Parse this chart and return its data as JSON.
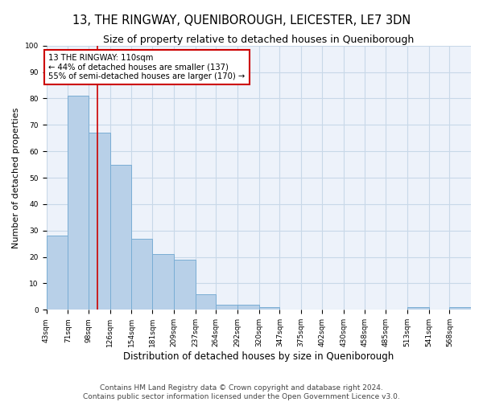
{
  "title": "13, THE RINGWAY, QUENIBOROUGH, LEICESTER, LE7 3DN",
  "subtitle": "Size of property relative to detached houses in Queniborough",
  "xlabel": "Distribution of detached houses by size in Queniborough",
  "ylabel": "Number of detached properties",
  "bar_values": [
    28,
    81,
    67,
    55,
    27,
    21,
    19,
    6,
    2,
    2,
    1,
    0,
    0,
    0,
    0,
    0,
    0,
    1,
    0,
    1
  ],
  "bin_edges": [
    43,
    71,
    98,
    126,
    154,
    181,
    209,
    237,
    264,
    292,
    320,
    347,
    375,
    402,
    430,
    458,
    485,
    513,
    541,
    568,
    596
  ],
  "bar_color": "#b8d0e8",
  "bar_edgecolor": "#7aadd4",
  "grid_color": "#c8d8e8",
  "background_color": "#edf2fa",
  "vline_x": 110,
  "vline_color": "#cc0000",
  "annotation_text": "13 THE RINGWAY: 110sqm\n← 44% of detached houses are smaller (137)\n55% of semi-detached houses are larger (170) →",
  "annotation_box_color": "#cc0000",
  "ylim": [
    0,
    100
  ],
  "yticks": [
    0,
    10,
    20,
    30,
    40,
    50,
    60,
    70,
    80,
    90,
    100
  ],
  "footer_line1": "Contains HM Land Registry data © Crown copyright and database right 2024.",
  "footer_line2": "Contains public sector information licensed under the Open Government Licence v3.0.",
  "title_fontsize": 10.5,
  "subtitle_fontsize": 9,
  "xlabel_fontsize": 8.5,
  "ylabel_fontsize": 8,
  "tick_fontsize": 6.5,
  "footer_fontsize": 6.5
}
